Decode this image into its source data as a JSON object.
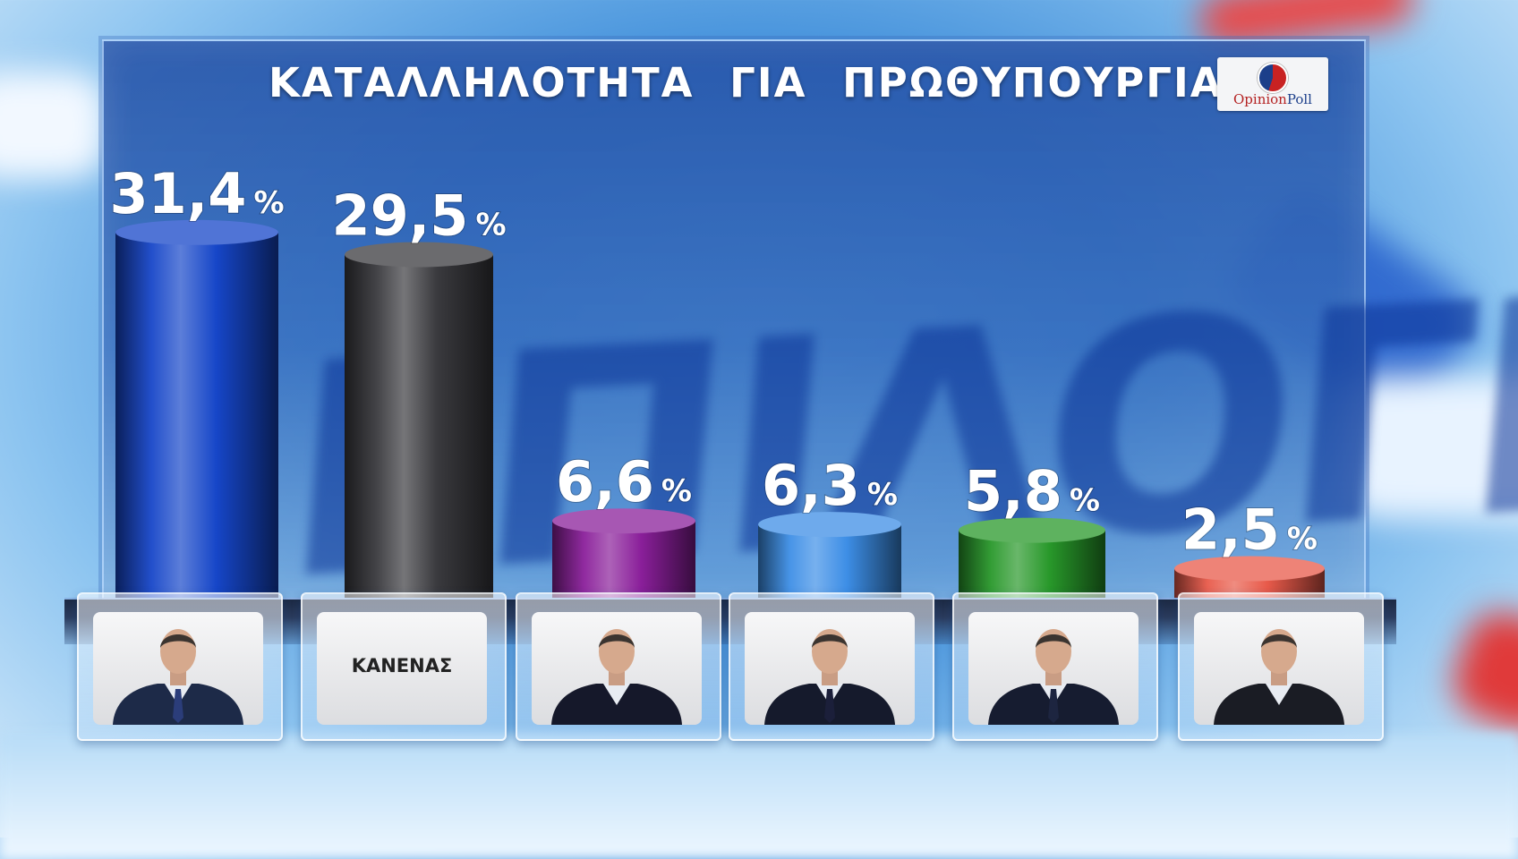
{
  "title": "ΚΑΤΑΛΛΗΛΟΤΗΤΑ ΓΙΑ ΠΡΩΘΥΠΟΥΡΓΙΑ",
  "logo": {
    "part1": "Opinion",
    "part2": "Poll"
  },
  "watermark": "ΕΠΙΛΟΓΗ",
  "colors": {
    "panel": "#2856aa",
    "label_text": "#ffffff",
    "bar_colors": [
      "#1646c8",
      "#3a3a3e",
      "#8a1f9a",
      "#3d8ee6",
      "#28982a",
      "#e85a4a"
    ]
  },
  "chart_data": {
    "type": "bar",
    "title": "ΚΑΤΑΛΛΗΛΟΤΗΤΑ ΓΙΑ ΠΡΩΘΥΠΟΥΡΓΙΑ",
    "categories": [
      "",
      "ΚΑΝΕΝΑΣ",
      "",
      "",
      "",
      ""
    ],
    "values": [
      31.4,
      29.5,
      6.6,
      6.3,
      5.8,
      2.5
    ],
    "value_labels": [
      "31,4",
      "29,5",
      "6,6",
      "6,3",
      "5,8",
      "2,5"
    ],
    "unit": "%",
    "ylim": [
      0,
      33
    ],
    "grid": false,
    "legend": "none"
  },
  "cards": [
    {
      "kind": "photo",
      "icon": "person-photo-icon",
      "suit": "#1d2a48",
      "tie": "#2b3d7a"
    },
    {
      "kind": "text",
      "label": "ΚΑΝΕΝΑΣ"
    },
    {
      "kind": "photo",
      "icon": "person-photo-icon",
      "suit": "#15182a",
      "tie": ""
    },
    {
      "kind": "photo",
      "icon": "person-photo-icon",
      "suit": "#151a2c",
      "tie": "#1b1f3a"
    },
    {
      "kind": "photo",
      "icon": "person-photo-icon",
      "suit": "#161c30",
      "tie": "#1d2540"
    },
    {
      "kind": "photo",
      "icon": "person-photo-icon",
      "suit": "#1a1c24",
      "tie": ""
    }
  ]
}
